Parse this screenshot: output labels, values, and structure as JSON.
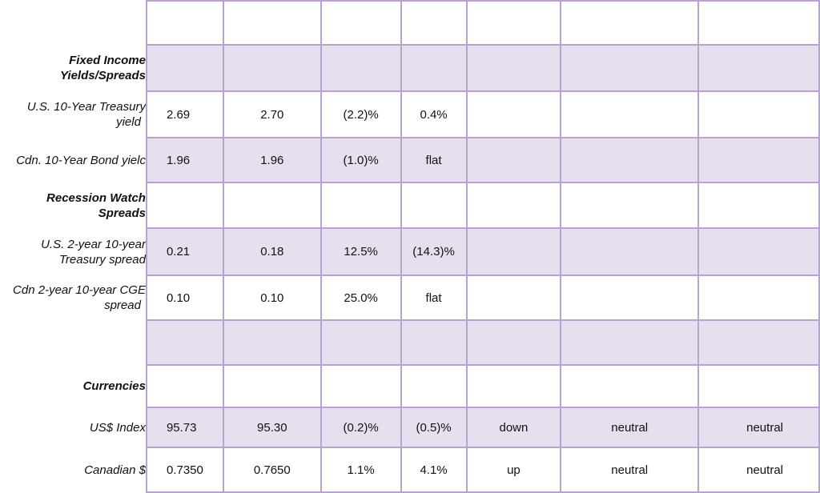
{
  "rows": [
    {
      "label": [
        "",
        ""
      ],
      "header": false,
      "values": [
        "",
        "",
        "",
        "",
        "",
        "",
        ""
      ]
    },
    {
      "label": [
        "Fixed Income",
        "Yields/Spreads"
      ],
      "header": true,
      "values": [
        "",
        "",
        "",
        "",
        "",
        "",
        ""
      ]
    },
    {
      "label": [
        "U.S. 10-Year Treasury",
        "yield"
      ],
      "header": false,
      "values": [
        "2.69",
        "2.70",
        "(2.2)%",
        "0.4%",
        "",
        "",
        ""
      ]
    },
    {
      "label": [
        "Cdn. 10-Year Bond yielc",
        ""
      ],
      "header": false,
      "values": [
        "1.96",
        "1.96",
        "(1.0)%",
        "flat",
        "",
        "",
        ""
      ]
    },
    {
      "label": [
        "Recession Watch",
        "Spreads"
      ],
      "header": true,
      "values": [
        "",
        "",
        "",
        "",
        "",
        "",
        ""
      ]
    },
    {
      "label": [
        "U.S. 2-year 10-year",
        "Treasury spread"
      ],
      "header": false,
      "values": [
        "0.21",
        "0.18",
        "12.5%",
        "(14.3)%",
        "",
        "",
        ""
      ]
    },
    {
      "label": [
        "Cdn 2-year 10-year CGE",
        "spread"
      ],
      "header": false,
      "values": [
        "0.10",
        "0.10",
        "25.0%",
        "flat",
        "",
        "",
        ""
      ]
    },
    {
      "label": [
        "",
        ""
      ],
      "header": false,
      "values": [
        "",
        "",
        "",
        "",
        "",
        "",
        ""
      ]
    },
    {
      "label": [
        "Currencies",
        ""
      ],
      "header": true,
      "values": [
        "",
        "",
        "",
        "",
        "",
        "",
        ""
      ]
    },
    {
      "label": [
        "US$ Index",
        ""
      ],
      "header": false,
      "values": [
        "95.73",
        "95.30",
        "(0.2)%",
        "(0.5)%",
        "down",
        "neutral",
        "neutral"
      ]
    },
    {
      "label": [
        "Canadian $",
        ""
      ],
      "header": false,
      "values": [
        "0.7350",
        "0.7650",
        "1.1%",
        "4.1%",
        "up",
        "neutral",
        "neutral"
      ]
    }
  ],
  "colors": {
    "grid": "#b9a3ce",
    "shade": "#e6e0ee",
    "negative": "#e8141c"
  }
}
